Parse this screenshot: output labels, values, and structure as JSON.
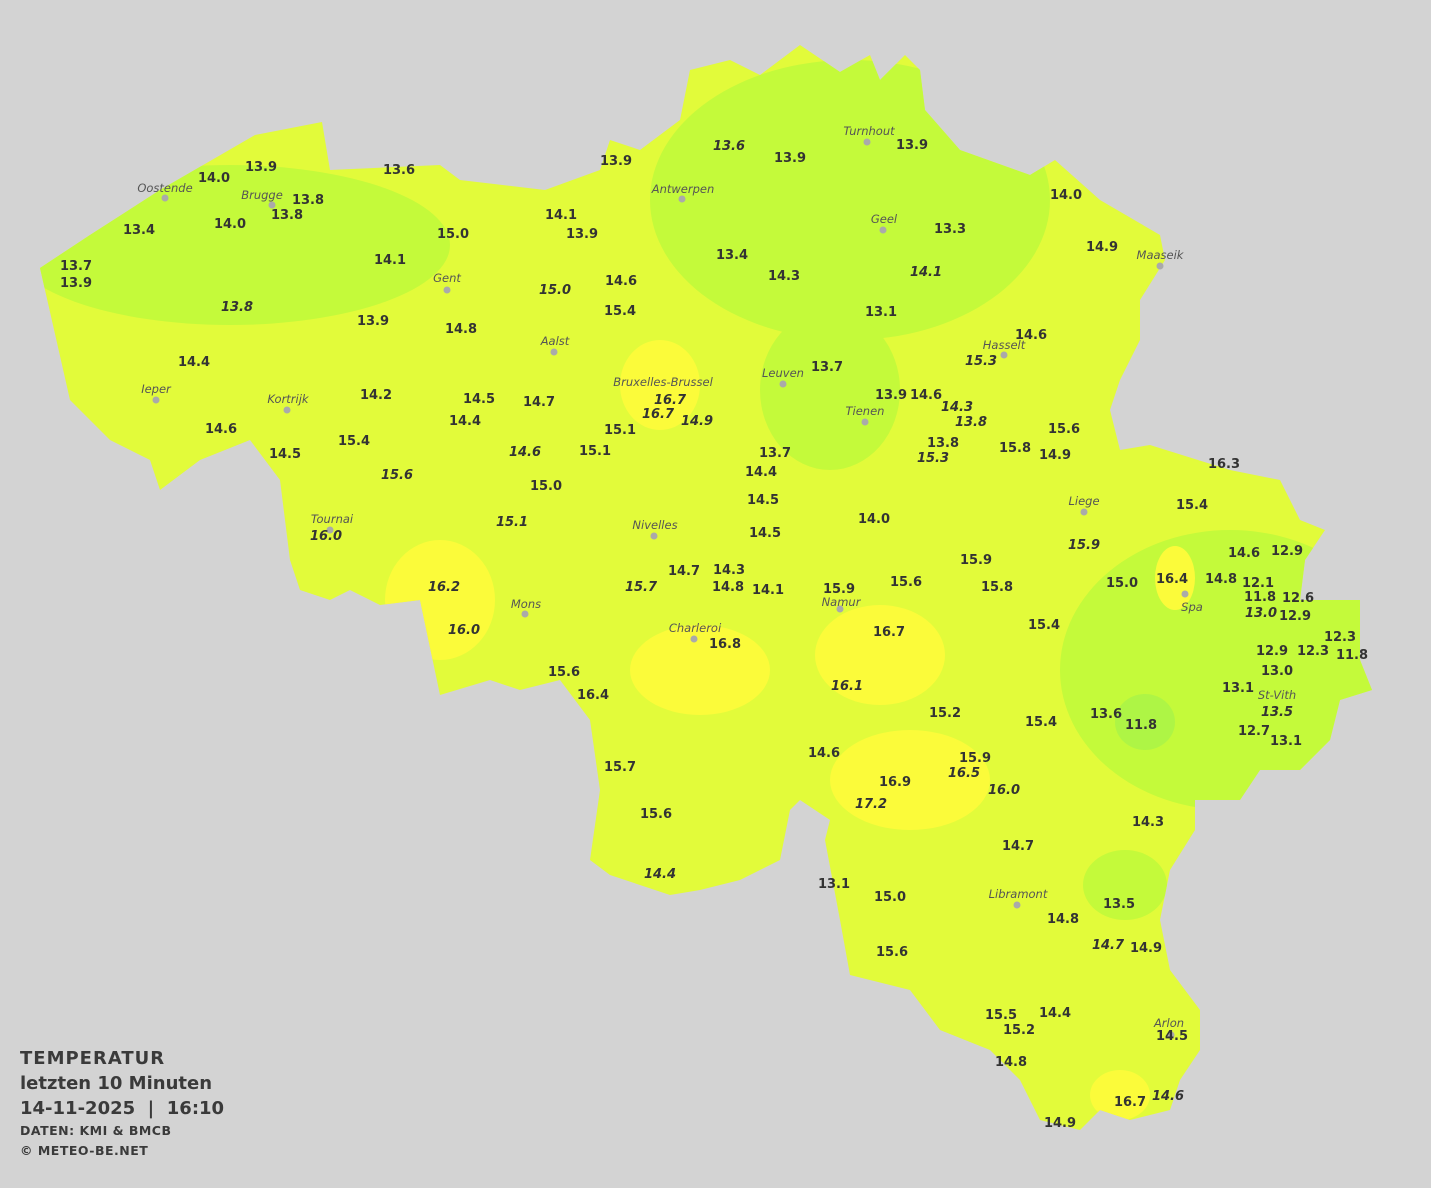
{
  "legend": {
    "title": "TEMPERATUR",
    "period": "letzten 10 Minuten",
    "datetime": "14-11-2025  |  16:10",
    "source": "DATEN: KMI & BMCB",
    "copyright": "© METEO-BE.NET"
  },
  "colors": {
    "background": "#d3d3d3",
    "base": "#e2fb3a",
    "cool": "#c4fa3a",
    "cooler": "#aef545",
    "warm": "#fbfb3a",
    "labels": "#333333"
  },
  "cities": [
    "Oostende",
    "Brugge",
    "Antwerpen",
    "Turnhout",
    "Geel",
    "Maaseik",
    "Gent",
    "Aalst",
    "Hasselt",
    "Leuven",
    "Ieper",
    "Kortrijk",
    "Bruxelles-Brussel",
    "Tienen",
    "Liege",
    "Tournai",
    "Nivelles",
    "Spa",
    "Mons",
    "Namur",
    "Charleroi",
    "St-Vith",
    "Libramont",
    "Arlon"
  ],
  "stations": [
    "13.9",
    "14.0",
    "13.6",
    "13.9",
    "13.6",
    "13.9",
    "13.9",
    "13.8",
    "13.8",
    "13.4",
    "14.0",
    "14.1",
    "13.9",
    "15.0",
    "14.1",
    "14.0",
    "13.3",
    "14.9",
    "13.4",
    "14.3",
    "14.1",
    "13.7",
    "13.9",
    "14.6",
    "15.0",
    "13.8",
    "15.4",
    "13.9",
    "14.8",
    "13.1",
    "14.6",
    "15.3",
    "14.4",
    "13.7",
    "16.7",
    "14.9",
    "16.7",
    "14.2",
    "14.5",
    "14.7",
    "13.9",
    "14.6",
    "14.3",
    "13.8",
    "14.4",
    "15.1",
    "14.6",
    "15.4",
    "14.6",
    "15.1",
    "15.6",
    "13.8",
    "15.3",
    "15.8",
    "14.9",
    "13.7",
    "14.5",
    "15.6",
    "14.4",
    "16.3",
    "15.0",
    "14.5",
    "15.4",
    "15.1",
    "14.0",
    "14.5",
    "16.0",
    "15.9",
    "14.6",
    "12.9",
    "15.9",
    "14.7",
    "14.3",
    "15.0",
    "16.4",
    "14.8",
    "12.1",
    "15.6",
    "15.8",
    "14.8",
    "14.1",
    "15.9",
    "16.2",
    "15.7",
    "11.8",
    "12.6",
    "13.0",
    "12.9",
    "16.0",
    "15.4",
    "16.7",
    "16.8",
    "12.3",
    "12.9",
    "12.3",
    "11.8",
    "13.0",
    "15.6",
    "16.1",
    "13.1",
    "16.4",
    "15.2",
    "13.6",
    "13.5",
    "15.4",
    "11.8",
    "12.7",
    "13.1",
    "14.6",
    "15.9",
    "16.5",
    "15.7",
    "16.9",
    "16.0",
    "17.2",
    "15.6",
    "14.3",
    "14.7",
    "14.4",
    "13.1",
    "15.0",
    "13.5",
    "14.8",
    "14.7",
    "14.9",
    "15.6",
    "15.5",
    "14.4",
    "15.2",
    "14.5",
    "14.8",
    "16.7",
    "14.6",
    "14.9"
  ]
}
